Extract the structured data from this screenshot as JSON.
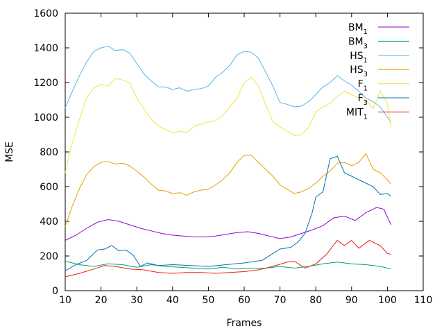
{
  "chart_data": {
    "type": "line",
    "title": "",
    "xlabel": "Frames",
    "ylabel": "MSE",
    "xlim": [
      10,
      110
    ],
    "ylim": [
      0,
      1600
    ],
    "xticks": [
      10,
      20,
      30,
      40,
      50,
      60,
      70,
      80,
      90,
      100,
      110
    ],
    "yticks": [
      0,
      200,
      400,
      600,
      800,
      1000,
      1200,
      1400,
      1600
    ],
    "grid": false,
    "legend": {
      "placement": "top-right"
    },
    "series": [
      {
        "name": "BM",
        "name_sub": "1",
        "color": "#9400d3",
        "x": [
          10,
          13,
          16,
          19,
          22,
          25,
          28,
          31,
          34,
          37,
          40,
          43,
          46,
          49,
          52,
          55,
          58,
          61,
          64,
          67,
          70,
          73,
          76,
          79,
          82,
          85,
          88,
          91,
          94,
          97,
          99,
          101
        ],
        "y": [
          290,
          320,
          360,
          395,
          410,
          400,
          380,
          360,
          345,
          330,
          320,
          315,
          310,
          310,
          315,
          325,
          335,
          340,
          330,
          315,
          300,
          310,
          330,
          350,
          375,
          420,
          430,
          405,
          450,
          480,
          470,
          380
        ]
      },
      {
        "name": "BM",
        "name_sub": "3",
        "color": "#009e73",
        "x": [
          10,
          14,
          18,
          22,
          26,
          30,
          34,
          38,
          42,
          46,
          50,
          54,
          58,
          62,
          66,
          70,
          74,
          78,
          82,
          86,
          90,
          94,
          98,
          101
        ],
        "y": [
          170,
          150,
          140,
          155,
          150,
          135,
          150,
          140,
          135,
          130,
          125,
          135,
          125,
          130,
          130,
          140,
          130,
          140,
          155,
          165,
          155,
          150,
          140,
          125
        ]
      },
      {
        "name": "HS",
        "name_sub": "1",
        "color": "#56b4e9",
        "x": [
          10,
          12,
          14,
          16,
          18,
          20,
          22,
          24,
          26,
          28,
          30,
          32,
          34,
          36,
          38,
          40,
          42,
          44,
          46,
          48,
          50,
          52,
          54,
          56,
          58,
          60,
          62,
          64,
          66,
          68,
          70,
          72,
          74,
          76,
          78,
          80,
          82,
          84,
          86,
          88,
          90,
          92,
          94,
          96,
          98,
          100,
          101
        ],
        "y": [
          1055,
          1150,
          1240,
          1320,
          1380,
          1400,
          1410,
          1385,
          1390,
          1370,
          1310,
          1250,
          1210,
          1175,
          1175,
          1160,
          1170,
          1150,
          1160,
          1165,
          1180,
          1230,
          1260,
          1300,
          1360,
          1380,
          1375,
          1340,
          1260,
          1180,
          1085,
          1075,
          1060,
          1065,
          1090,
          1130,
          1175,
          1200,
          1240,
          1210,
          1185,
          1150,
          1110,
          1090,
          1060,
          1000,
          970
        ]
      },
      {
        "name": "HS",
        "name_sub": "3",
        "color": "#e69f00",
        "x": [
          10,
          12,
          14,
          16,
          18,
          20,
          22,
          24,
          26,
          28,
          30,
          32,
          34,
          36,
          38,
          40,
          42,
          44,
          46,
          48,
          50,
          52,
          54,
          56,
          58,
          60,
          62,
          64,
          66,
          68,
          70,
          72,
          74,
          76,
          78,
          80,
          82,
          84,
          86,
          88,
          90,
          92,
          94,
          96,
          98,
          100,
          101
        ],
        "y": [
          370,
          490,
          590,
          670,
          715,
          740,
          745,
          730,
          735,
          720,
          690,
          655,
          615,
          580,
          575,
          560,
          565,
          550,
          570,
          580,
          585,
          610,
          640,
          680,
          740,
          780,
          780,
          740,
          700,
          660,
          610,
          585,
          560,
          570,
          590,
          620,
          660,
          690,
          735,
          740,
          720,
          740,
          790,
          700,
          680,
          640,
          615
        ]
      },
      {
        "name": "F",
        "name_sub": "1",
        "color": "#f0e442",
        "x": [
          10,
          12,
          14,
          16,
          18,
          20,
          22,
          24,
          26,
          28,
          30,
          32,
          34,
          36,
          38,
          40,
          42,
          44,
          46,
          48,
          50,
          52,
          54,
          56,
          58,
          60,
          62,
          64,
          66,
          68,
          70,
          72,
          74,
          76,
          78,
          80,
          82,
          84,
          86,
          88,
          90,
          92,
          94,
          96,
          98,
          100,
          101
        ],
        "y": [
          680,
          850,
          990,
          1110,
          1170,
          1190,
          1180,
          1225,
          1215,
          1200,
          1110,
          1050,
          990,
          950,
          930,
          910,
          920,
          910,
          950,
          960,
          975,
          980,
          1010,
          1060,
          1110,
          1200,
          1230,
          1180,
          1070,
          975,
          945,
          920,
          895,
          900,
          940,
          1030,
          1060,
          1080,
          1120,
          1150,
          1130,
          1110,
          1100,
          1050,
          1150,
          1080,
          940
        ]
      },
      {
        "name": "F",
        "name_sub": "3",
        "color": "#0072b2",
        "x": [
          10,
          13,
          16,
          19,
          21,
          23,
          25,
          27,
          29,
          31,
          33,
          36,
          40,
          45,
          50,
          55,
          60,
          65,
          70,
          73,
          75,
          77,
          79,
          80,
          82,
          84,
          86,
          88,
          90,
          92,
          94,
          96,
          98,
          100,
          101
        ],
        "y": [
          115,
          150,
          175,
          235,
          240,
          260,
          230,
          235,
          205,
          140,
          160,
          145,
          150,
          145,
          140,
          150,
          160,
          175,
          240,
          250,
          280,
          330,
          450,
          540,
          570,
          760,
          775,
          680,
          660,
          640,
          620,
          600,
          555,
          560,
          545
        ]
      },
      {
        "name": "MIT",
        "name_sub": "1",
        "color": "#e51e10",
        "x": [
          10,
          14,
          18,
          21,
          24,
          28,
          32,
          36,
          40,
          44,
          48,
          52,
          56,
          60,
          64,
          68,
          72,
          74,
          77,
          80,
          83,
          86,
          88,
          90,
          92,
          95,
          98,
          100,
          101
        ],
        "y": [
          80,
          100,
          125,
          145,
          140,
          125,
          120,
          105,
          100,
          105,
          105,
          100,
          105,
          110,
          120,
          140,
          165,
          170,
          130,
          155,
          210,
          290,
          260,
          290,
          245,
          290,
          260,
          215,
          210
        ]
      }
    ]
  }
}
